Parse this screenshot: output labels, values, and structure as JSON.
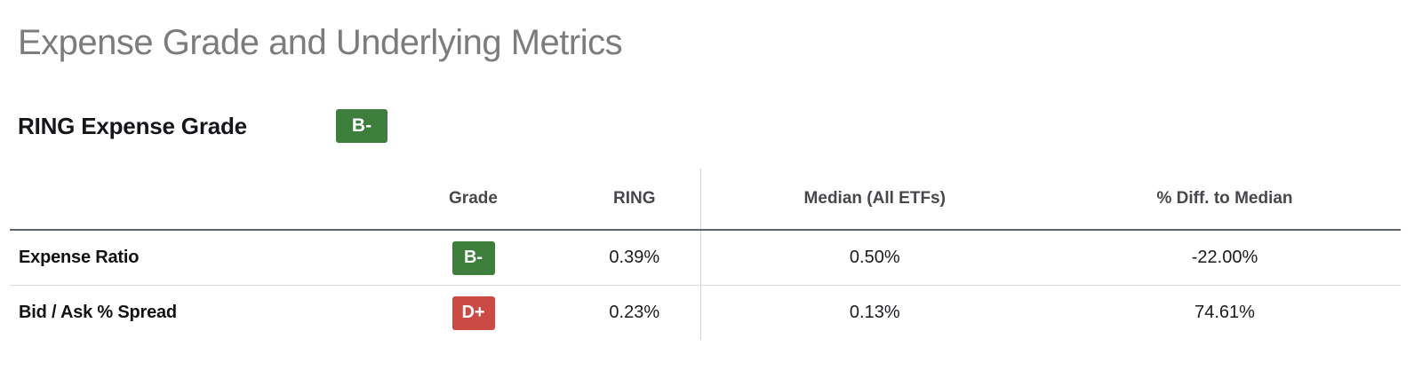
{
  "page": {
    "title": "Expense Grade and Underlying Metrics",
    "background": "#ffffff"
  },
  "subheader": {
    "label": "RING Expense Grade",
    "grade": "B-",
    "grade_color": "#3e7e3d"
  },
  "table": {
    "columns": [
      "",
      "Grade",
      "RING",
      "Median (All ETFs)",
      "% Diff. to Median"
    ],
    "rows": [
      {
        "label": "Expense Ratio",
        "grade": "B-",
        "grade_color": "#3e7e3d",
        "ring": "0.39%",
        "median": "0.50%",
        "diff": "-22.00%"
      },
      {
        "label": "Bid / Ask % Spread",
        "grade": "D+",
        "grade_color": "#cb4a44",
        "ring": "0.23%",
        "median": "0.13%",
        "diff": "74.61%"
      }
    ]
  },
  "colors": {
    "grade_green": "#3e7e3d",
    "grade_red": "#cb4a44",
    "title_gray": "#7c7c7c",
    "header_text": "#46484b",
    "heavy_rule": "#5c6670",
    "light_rule": "#dcdcdc",
    "column_divider": "#d2d2d2"
  }
}
